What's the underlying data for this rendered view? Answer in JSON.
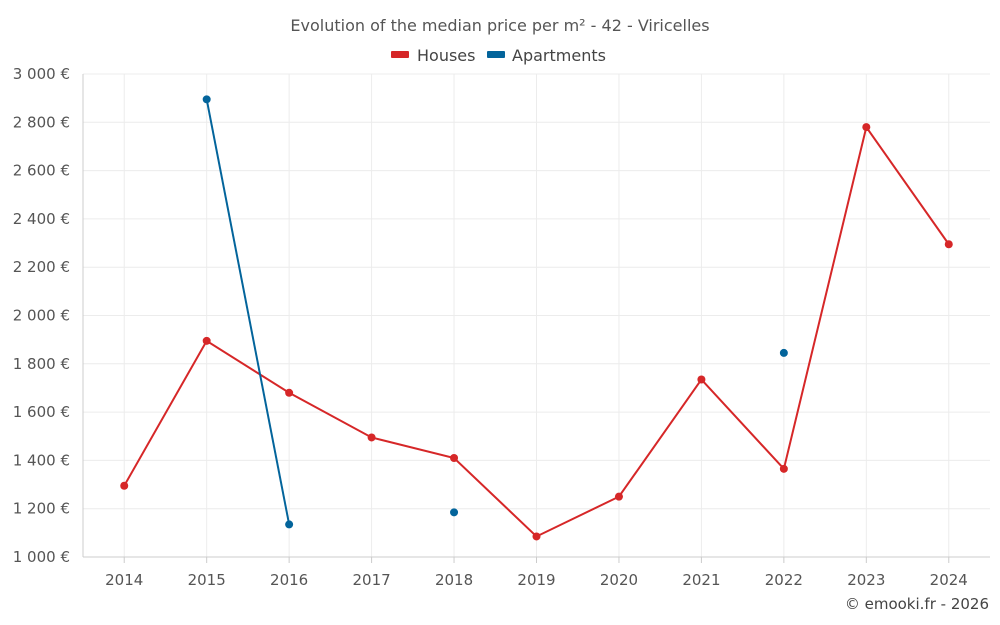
{
  "chart_data": {
    "type": "line",
    "title": "Evolution of the median price per m² - 42 - Viricelles",
    "x": [
      "2014",
      "2015",
      "2016",
      "2017",
      "2018",
      "2019",
      "2020",
      "2021",
      "2022",
      "2023",
      "2024"
    ],
    "ylim": [
      1000,
      3000
    ],
    "y_ticks": [
      "1 000 €",
      "1 200 €",
      "1 400 €",
      "1 600 €",
      "1 800 €",
      "2 000 €",
      "2 200 €",
      "2 400 €",
      "2 600 €",
      "2 800 €",
      "3 000 €"
    ],
    "y_tick_values": [
      1000,
      1200,
      1400,
      1600,
      1800,
      2000,
      2200,
      2400,
      2600,
      2800,
      3000
    ],
    "grid": true,
    "legend_position": "top-center",
    "series": [
      {
        "name": "Houses",
        "color": "#d62728",
        "values": [
          1295,
          1895,
          1680,
          1495,
          1410,
          1085,
          1250,
          1735,
          1365,
          2780,
          2295
        ]
      },
      {
        "name": "Apartments",
        "color": "#03649b",
        "values": [
          null,
          2895,
          1135,
          null,
          1185,
          null,
          null,
          null,
          1845,
          null,
          null
        ]
      }
    ]
  },
  "credit": "© emooki.fr - 2026"
}
